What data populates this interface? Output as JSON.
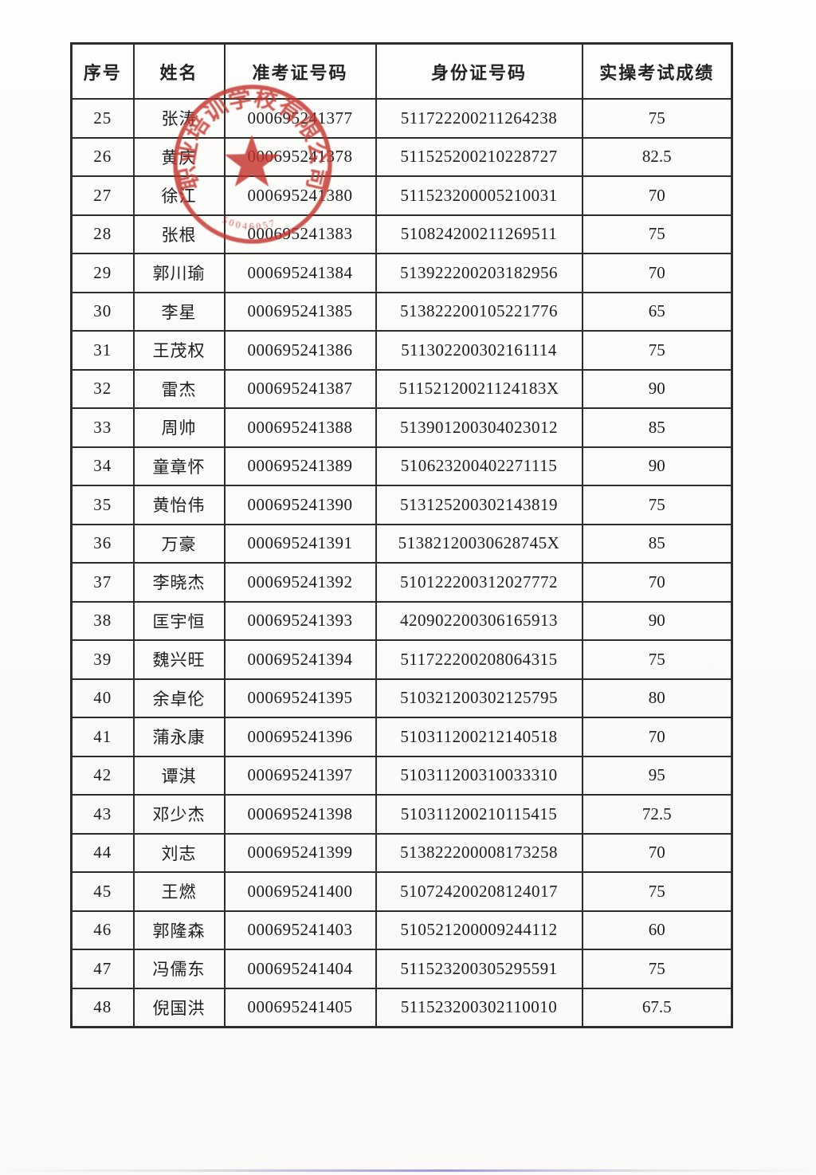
{
  "table": {
    "columns": [
      "序号",
      "姓名",
      "准考证号码",
      "身份证号码",
      "实操考试成绩"
    ],
    "rows": [
      [
        "25",
        "张涛",
        "000695241377",
        "511722200211264238",
        "75"
      ],
      [
        "26",
        "黄庆",
        "000695241378",
        "511525200210228727",
        "82.5"
      ],
      [
        "27",
        "徐江",
        "000695241380",
        "511523200005210031",
        "70"
      ],
      [
        "28",
        "张根",
        "000695241383",
        "510824200211269511",
        "75"
      ],
      [
        "29",
        "郭川瑜",
        "000695241384",
        "513922200203182956",
        "70"
      ],
      [
        "30",
        "李星",
        "000695241385",
        "513822200105221776",
        "65"
      ],
      [
        "31",
        "王茂权",
        "000695241386",
        "511302200302161114",
        "75"
      ],
      [
        "32",
        "雷杰",
        "000695241387",
        "51152120021124183X",
        "90"
      ],
      [
        "33",
        "周帅",
        "000695241388",
        "513901200304023012",
        "85"
      ],
      [
        "34",
        "童章怀",
        "000695241389",
        "510623200402271115",
        "90"
      ],
      [
        "35",
        "黄怡伟",
        "000695241390",
        "513125200302143819",
        "75"
      ],
      [
        "36",
        "万豪",
        "000695241391",
        "51382120030628745X",
        "85"
      ],
      [
        "37",
        "李晓杰",
        "000695241392",
        "510122200312027772",
        "70"
      ],
      [
        "38",
        "匡宇恒",
        "000695241393",
        "420902200306165913",
        "90"
      ],
      [
        "39",
        "魏兴旺",
        "000695241394",
        "511722200208064315",
        "75"
      ],
      [
        "40",
        "余卓伦",
        "000695241395",
        "510321200302125795",
        "80"
      ],
      [
        "41",
        "蒲永康",
        "000695241396",
        "510311200212140518",
        "70"
      ],
      [
        "42",
        "谭淇",
        "000695241397",
        "510311200310033310",
        "95"
      ],
      [
        "43",
        "邓少杰",
        "000695241398",
        "510311200210115415",
        "72.5"
      ],
      [
        "44",
        "刘志",
        "000695241399",
        "513822200008173258",
        "70"
      ],
      [
        "45",
        "王燃",
        "000695241400",
        "510724200208124017",
        "75"
      ],
      [
        "46",
        "郭隆森",
        "000695241403",
        "510521200009244112",
        "60"
      ],
      [
        "47",
        "冯儒东",
        "000695241404",
        "511523200305295591",
        "75"
      ],
      [
        "48",
        "倪国洪",
        "000695241405",
        "511523200302110010",
        "67.5"
      ]
    ]
  },
  "stamp": {
    "arc_text": "职业培训学校有限公司",
    "serial_number": "50046057",
    "color": "#c4342c"
  },
  "artifacts": {
    "bottom_scan_line_color": "#8f86d8"
  }
}
